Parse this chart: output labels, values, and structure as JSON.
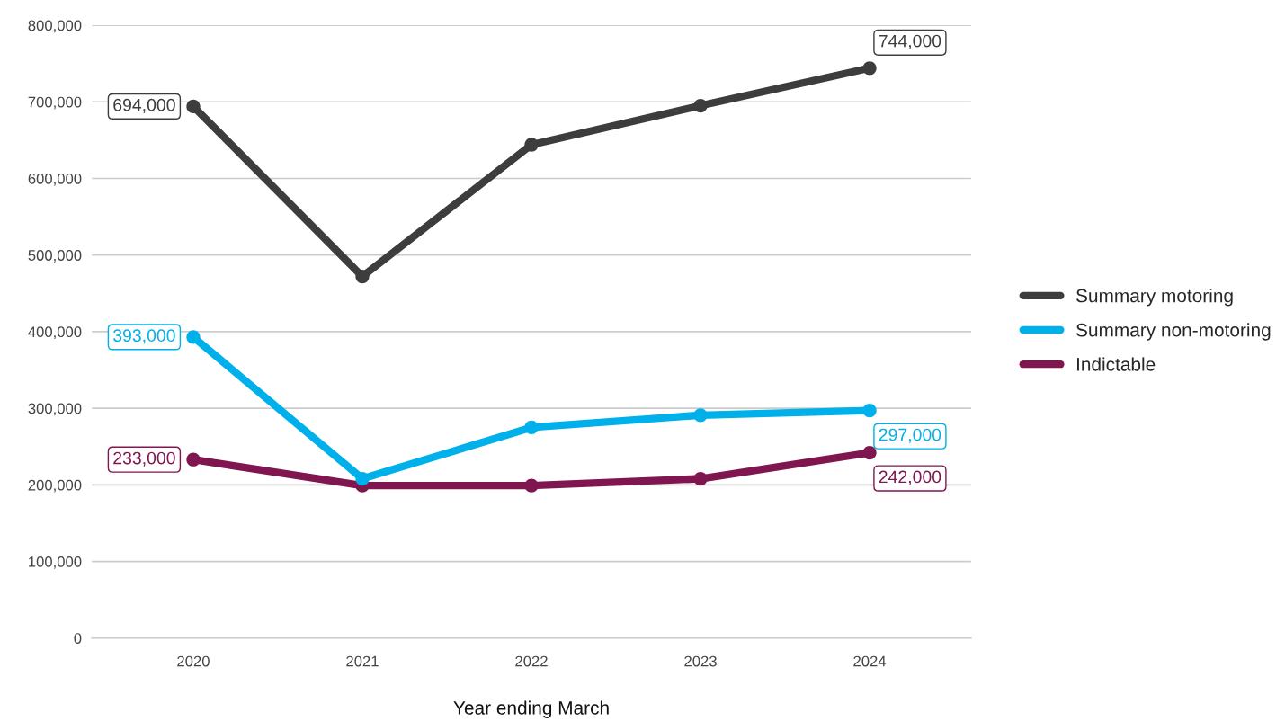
{
  "chart_data": {
    "type": "line",
    "xlabel": "Year ending March",
    "categories": [
      "2020",
      "2021",
      "2022",
      "2023",
      "2024"
    ],
    "series": [
      {
        "name": "Summary motoring",
        "color": "#3d3d3d",
        "values": [
          694000,
          472000,
          644000,
          695000,
          744000
        ],
        "value_labels": [
          "694,000",
          null,
          null,
          null,
          "744,000"
        ]
      },
      {
        "name": "Summary non-motoring",
        "color": "#00b0ea",
        "values": [
          393000,
          208000,
          275000,
          291000,
          297000
        ],
        "value_labels": [
          "393,000",
          null,
          null,
          null,
          "297,000"
        ]
      },
      {
        "name": "Indictable",
        "color": "#801650",
        "values": [
          233000,
          199000,
          199000,
          208000,
          242000
        ],
        "value_labels": [
          "233,000",
          null,
          null,
          null,
          "242,000"
        ]
      }
    ],
    "ylim": [
      0,
      800000
    ],
    "yticks": [
      {
        "value": 0,
        "label": "0"
      },
      {
        "value": 100000,
        "label": "100,000"
      },
      {
        "value": 200000,
        "label": "200,000"
      },
      {
        "value": 300000,
        "label": "300,000"
      },
      {
        "value": 400000,
        "label": "400,000"
      },
      {
        "value": 500000,
        "label": "500,000"
      },
      {
        "value": 600000,
        "label": "600,000"
      },
      {
        "value": 700000,
        "label": "700,000"
      },
      {
        "value": 800000,
        "label": "800,000"
      }
    ],
    "grid": "y",
    "legend": "right",
    "marker": "circle",
    "line_style": "solid"
  }
}
